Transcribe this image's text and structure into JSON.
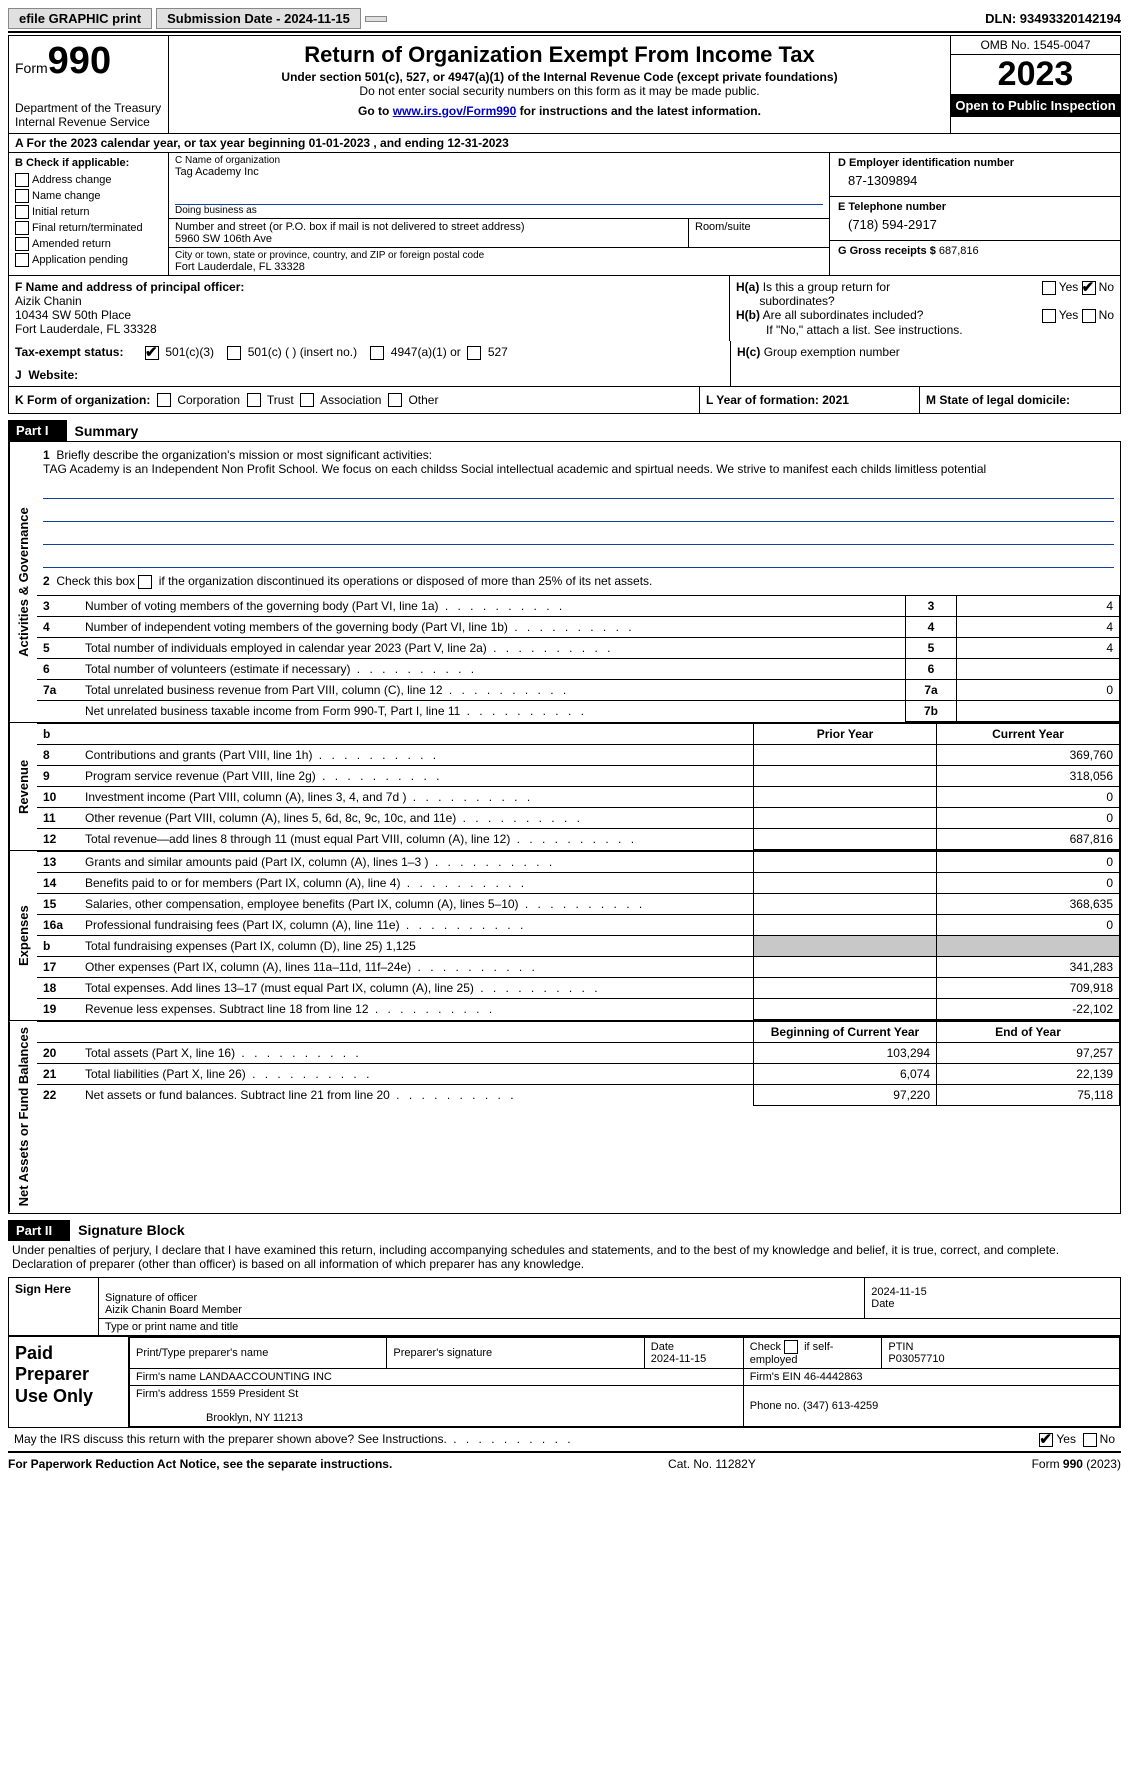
{
  "topbar": {
    "efile": "efile GRAPHIC print",
    "submission_label": "Submission Date - 2024-11-15",
    "dln_label": "DLN: 93493320142194"
  },
  "header": {
    "form_word": "Form",
    "form_num": "990",
    "dept": "Department of the Treasury",
    "irs": "Internal Revenue Service",
    "title": "Return of Organization Exempt From Income Tax",
    "subtitle": "Under section 501(c), 527, or 4947(a)(1) of the Internal Revenue Code (except private foundations)",
    "warn": "Do not enter social security numbers on this form as it may be made public.",
    "goto_prefix": "Go to ",
    "goto_link": "www.irs.gov/Form990",
    "goto_suffix": " for instructions and the latest information.",
    "omb": "OMB No. 1545-0047",
    "year": "2023",
    "open": "Open to Public Inspection"
  },
  "row_a": "A  For the 2023 calendar year, or tax year beginning 01-01-2023    , and ending 12-31-2023",
  "box_b": {
    "title": "B Check if applicable:",
    "items": [
      "Address change",
      "Name change",
      "Initial return",
      "Final return/terminated",
      "Amended return",
      "Application pending"
    ]
  },
  "box_c": {
    "name_cap": "C Name of organization",
    "name_val": "Tag Academy Inc",
    "dba_cap": "Doing business as",
    "addr_cap": "Number and street (or P.O. box if mail is not delivered to street address)",
    "addr_val": "5960 SW 106th Ave",
    "room_cap": "Room/suite",
    "city_cap": "City or town, state or province, country, and ZIP or foreign postal code",
    "city_val": "Fort Lauderdale, FL  33328"
  },
  "box_d": {
    "ein_cap": "D Employer identification number",
    "ein_val": "87-1309894",
    "tel_cap": "E Telephone number",
    "tel_val": "(718) 594-2917",
    "gross_cap": "G Gross receipts $ ",
    "gross_val": "687,816"
  },
  "box_f": {
    "cap": "F  Name and address of principal officer:",
    "name": "Aizik Chanin",
    "addr1": "10434 SW 50th Place",
    "addr2": "Fort Lauderdale, FL  33328"
  },
  "box_h": {
    "a_label": "H(a)",
    "a_text1": "Is this a group return for",
    "a_text2": "subordinates?",
    "b_label": "H(b)",
    "b_text1": "Are all subordinates included?",
    "b_note": "If \"No,\" attach a list. See instructions.",
    "c_label": "H(c)",
    "c_text": "Group exemption number ",
    "yes": "Yes",
    "no": "No"
  },
  "row_i": {
    "label": "Tax-exempt status:",
    "opt1": "501(c)(3)",
    "opt2": "501(c) (   ) (insert no.)",
    "opt3": "4947(a)(1) or",
    "opt4": "527"
  },
  "row_j": {
    "label": "Website: "
  },
  "row_k": {
    "k": "K Form of organization:",
    "opts": [
      "Corporation",
      "Trust",
      "Association",
      "Other"
    ],
    "l": "L Year of formation: 2021",
    "m": "M State of legal domicile:"
  },
  "parts": {
    "p1_tab": "Part I",
    "p1_title": "Summary",
    "p2_tab": "Part II",
    "p2_title": "Signature Block"
  },
  "summary": {
    "line1_label": "1",
    "line1_text": "Briefly describe the organization's mission or most significant activities:",
    "mission": "TAG Academy is an Independent Non Profit School. We focus on each childss Social intellectual academic and spirtual needs. We strive to manifest each childs limitless potential",
    "line2_label": "2",
    "line2_text": "Check this box      if the organization discontinued its operations or disposed of more than 25% of its net assets.",
    "rows_gov": [
      {
        "n": "3",
        "t": "Number of voting members of the governing body (Part VI, line 1a)",
        "b": "3",
        "v": "4"
      },
      {
        "n": "4",
        "t": "Number of independent voting members of the governing body (Part VI, line 1b)",
        "b": "4",
        "v": "4"
      },
      {
        "n": "5",
        "t": "Total number of individuals employed in calendar year 2023 (Part V, line 2a)",
        "b": "5",
        "v": "4"
      },
      {
        "n": "6",
        "t": "Total number of volunteers (estimate if necessary)",
        "b": "6",
        "v": ""
      },
      {
        "n": "7a",
        "t": "Total unrelated business revenue from Part VIII, column (C), line 12",
        "b": "7a",
        "v": "0"
      },
      {
        "n": "",
        "t": "Net unrelated business taxable income from Form 990-T, Part I, line 11",
        "b": "7b",
        "v": ""
      }
    ],
    "col_hdrs": {
      "b": "b",
      "prior": "Prior Year",
      "curr": "Current Year"
    },
    "rows_rev": [
      {
        "n": "8",
        "t": "Contributions and grants (Part VIII, line 1h)",
        "p": "",
        "c": "369,760"
      },
      {
        "n": "9",
        "t": "Program service revenue (Part VIII, line 2g)",
        "p": "",
        "c": "318,056"
      },
      {
        "n": "10",
        "t": "Investment income (Part VIII, column (A), lines 3, 4, and 7d )",
        "p": "",
        "c": "0"
      },
      {
        "n": "11",
        "t": "Other revenue (Part VIII, column (A), lines 5, 6d, 8c, 9c, 10c, and 11e)",
        "p": "",
        "c": "0"
      },
      {
        "n": "12",
        "t": "Total revenue—add lines 8 through 11 (must equal Part VIII, column (A), line 12)",
        "p": "",
        "c": "687,816"
      }
    ],
    "rows_exp": [
      {
        "n": "13",
        "t": "Grants and similar amounts paid (Part IX, column (A), lines 1–3 )",
        "p": "",
        "c": "0",
        "grey": false
      },
      {
        "n": "14",
        "t": "Benefits paid to or for members (Part IX, column (A), line 4)",
        "p": "",
        "c": "0",
        "grey": false
      },
      {
        "n": "15",
        "t": "Salaries, other compensation, employee benefits (Part IX, column (A), lines 5–10)",
        "p": "",
        "c": "368,635",
        "grey": false
      },
      {
        "n": "16a",
        "t": "Professional fundraising fees (Part IX, column (A), line 11e)",
        "p": "",
        "c": "0",
        "grey": false
      },
      {
        "n": "b",
        "t": "Total fundraising expenses (Part IX, column (D), line 25) 1,125",
        "p": "",
        "c": "",
        "grey": true
      },
      {
        "n": "17",
        "t": "Other expenses (Part IX, column (A), lines 11a–11d, 11f–24e)",
        "p": "",
        "c": "341,283",
        "grey": false
      },
      {
        "n": "18",
        "t": "Total expenses. Add lines 13–17 (must equal Part IX, column (A), line 25)",
        "p": "",
        "c": "709,918",
        "grey": false
      },
      {
        "n": "19",
        "t": "Revenue less expenses. Subtract line 18 from line 12",
        "p": "",
        "c": "-22,102",
        "grey": false
      }
    ],
    "net_hdrs": {
      "beg": "Beginning of Current Year",
      "end": "End of Year"
    },
    "rows_net": [
      {
        "n": "20",
        "t": "Total assets (Part X, line 16)",
        "p": "103,294",
        "c": "97,257"
      },
      {
        "n": "21",
        "t": "Total liabilities (Part X, line 26)",
        "p": "6,074",
        "c": "22,139"
      },
      {
        "n": "22",
        "t": "Net assets or fund balances. Subtract line 21 from line 20",
        "p": "97,220",
        "c": "75,118"
      }
    ]
  },
  "sides": {
    "gov": "Activities & Governance",
    "rev": "Revenue",
    "exp": "Expenses",
    "net": "Net Assets or Fund Balances"
  },
  "sig": {
    "decl": "Under penalties of perjury, I declare that I have examined this return, including accompanying schedules and statements, and to the best of my knowledge and belief, it is true, correct, and complete. Declaration of preparer (other than officer) is based on all information of which preparer has any knowledge.",
    "sign_here": "Sign Here",
    "sig_cap": "Signature of officer",
    "sig_name": "Aizik Chanin  Board Member",
    "type_cap": "Type or print name and title",
    "date_cap": "Date",
    "date_val": "2024-11-15"
  },
  "paid": {
    "side": "Paid Preparer Use Only",
    "h1": "Print/Type preparer's name",
    "h2": "Preparer's signature",
    "h3": "Date",
    "h3v": "2024-11-15",
    "h4a": "Check",
    "h4b": "if self-employed",
    "h5": "PTIN",
    "h5v": "P03057710",
    "firm_name_cap": "Firm's name    ",
    "firm_name": "LANDAACCOUNTING INC",
    "firm_ein_cap": "Firm's EIN  ",
    "firm_ein": "46-4442863",
    "firm_addr_cap": "Firm's address ",
    "firm_addr1": "1559 President St",
    "firm_addr2": "Brooklyn, NY  11213",
    "phone_cap": "Phone no. ",
    "phone": "(347) 613-4259"
  },
  "discuss": "May the IRS discuss this return with the preparer shown above? See Instructions.",
  "footer": {
    "left": "For Paperwork Reduction Act Notice, see the separate instructions.",
    "mid": "Cat. No. 11282Y",
    "right": "Form 990 (2023)"
  },
  "colors": {
    "link": "#0000cc",
    "rule": "#1040a0",
    "grey": "#c8c8c8"
  }
}
